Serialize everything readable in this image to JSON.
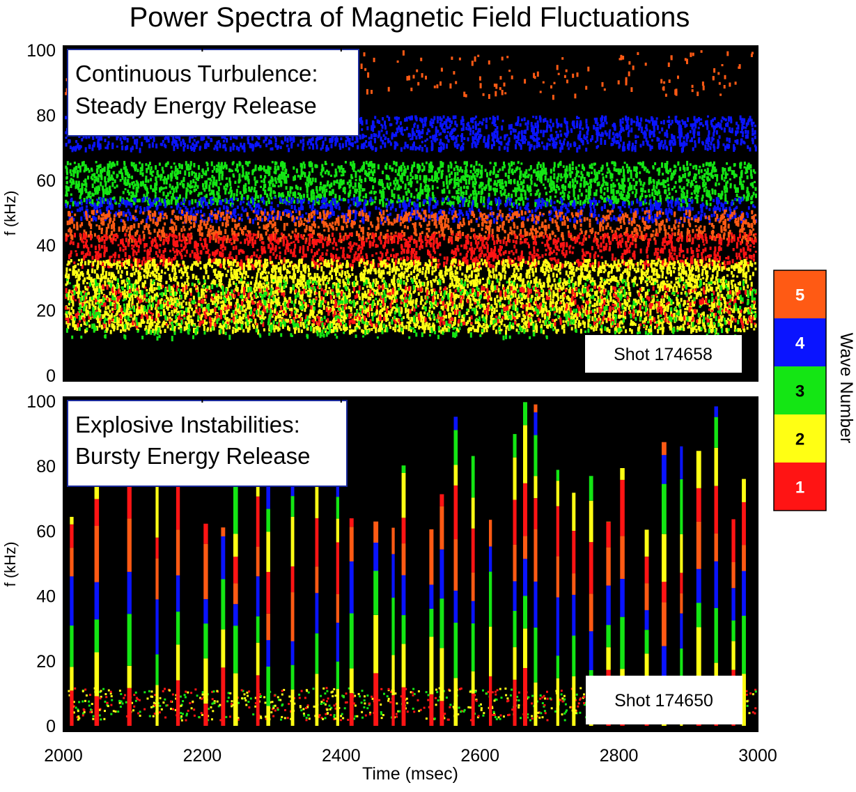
{
  "chart_data": {
    "type": "heatmap",
    "title": "Power Spectra of Magnetic Field Fluctuations",
    "xlabel": "Time (msec)",
    "xlim": [
      2000,
      3000
    ],
    "xticks": [
      "2000",
      "2200",
      "2400",
      "2600",
      "2800",
      "3000"
    ],
    "colorbar": {
      "label": "Wave Number",
      "levels": [
        {
          "value": "5",
          "color": "#ff5a14"
        },
        {
          "value": "4",
          "color": "#0a14ff"
        },
        {
          "value": "3",
          "color": "#14e614"
        },
        {
          "value": "2",
          "color": "#ffff14"
        },
        {
          "value": "1",
          "color": "#ff1414"
        }
      ]
    },
    "panels": [
      {
        "id": "top",
        "annotation_line1": "Continuous Turbulence:",
        "annotation_line2": "Steady Energy Release",
        "shot_label": "Shot  174658",
        "ylabel": "f (kHz)",
        "ylim": [
          0,
          100
        ],
        "yticks": [
          "0",
          "20",
          "40",
          "60",
          "80",
          "100"
        ],
        "pattern": "continuous",
        "bands": [
          {
            "mode": "5",
            "f_min": 86,
            "f_max": 100,
            "density": 0.05
          },
          {
            "mode": "4",
            "f_min": 70,
            "f_max": 80,
            "density": 0.55
          },
          {
            "mode": "3",
            "f_min": 53,
            "f_max": 66,
            "density": 0.6
          },
          {
            "mode": "4",
            "f_min": 48,
            "f_max": 55,
            "density": 0.45
          },
          {
            "mode": "5",
            "f_min": 42,
            "f_max": 51,
            "density": 0.45
          },
          {
            "mode": "1",
            "f_min": 34,
            "f_max": 44,
            "density": 0.5
          },
          {
            "mode": "2",
            "f_min": 14,
            "f_max": 36,
            "density": 0.7
          },
          {
            "mode": "1",
            "f_min": 16,
            "f_max": 28,
            "density": 0.2
          },
          {
            "mode": "3",
            "f_min": 12,
            "f_max": 30,
            "density": 0.15
          }
        ]
      },
      {
        "id": "bottom",
        "annotation_line1": "Explosive Instabilities:",
        "annotation_line2": "Bursty Energy Release",
        "shot_label": "Shot  174650",
        "ylabel": "f (kHz)",
        "ylim": [
          0,
          100
        ],
        "yticks": [
          "0",
          "20",
          "40",
          "60",
          "80",
          "100"
        ],
        "pattern": "bursty",
        "burst_times_msec": [
          2012,
          2048,
          2095,
          2135,
          2165,
          2205,
          2230,
          2248,
          2280,
          2295,
          2330,
          2365,
          2395,
          2415,
          2450,
          2475,
          2490,
          2530,
          2545,
          2565,
          2590,
          2615,
          2650,
          2665,
          2680,
          2712,
          2735,
          2760,
          2785,
          2805,
          2840,
          2865,
          2890,
          2915,
          2940,
          2965,
          2980
        ]
      }
    ]
  }
}
